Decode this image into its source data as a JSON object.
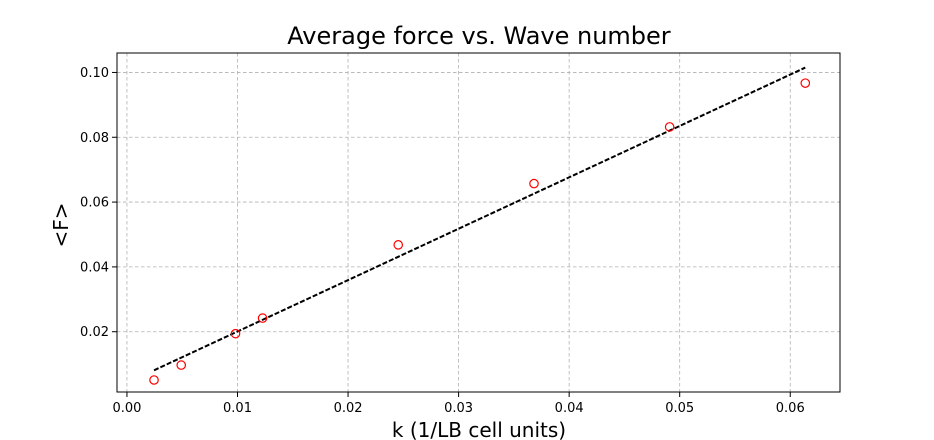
{
  "chart_data": {
    "type": "scatter",
    "title": "Average force vs. Wave number",
    "xlabel": "k (1/LB cell units)",
    "ylabel": "<F>",
    "xlim": [
      -0.0009,
      0.0645
    ],
    "ylim": [
      0.0014,
      0.106
    ],
    "xticks": [
      0.0,
      0.01,
      0.02,
      0.03,
      0.04,
      0.05,
      0.06
    ],
    "xtick_labels": [
      "0.00",
      "0.01",
      "0.02",
      "0.03",
      "0.04",
      "0.05",
      "0.06"
    ],
    "yticks": [
      0.02,
      0.04,
      0.06,
      0.08,
      0.1
    ],
    "ytick_labels": [
      "0.02",
      "0.04",
      "0.06",
      "0.08",
      "0.10"
    ],
    "grid": true,
    "series": [
      {
        "marker": "open-circle",
        "color": "#ff0000",
        "x": [
          0.00245,
          0.00491,
          0.00982,
          0.01227,
          0.02454,
          0.03682,
          0.04909,
          0.06136
        ],
        "y": [
          0.0051,
          0.0097,
          0.0194,
          0.0242,
          0.0468,
          0.0657,
          0.0832,
          0.0967
        ]
      },
      {
        "type": "line",
        "style": "dashed",
        "color": "#000000",
        "x": [
          0.00245,
          0.06136
        ],
        "y": [
          0.0081,
          0.1015
        ]
      }
    ]
  }
}
